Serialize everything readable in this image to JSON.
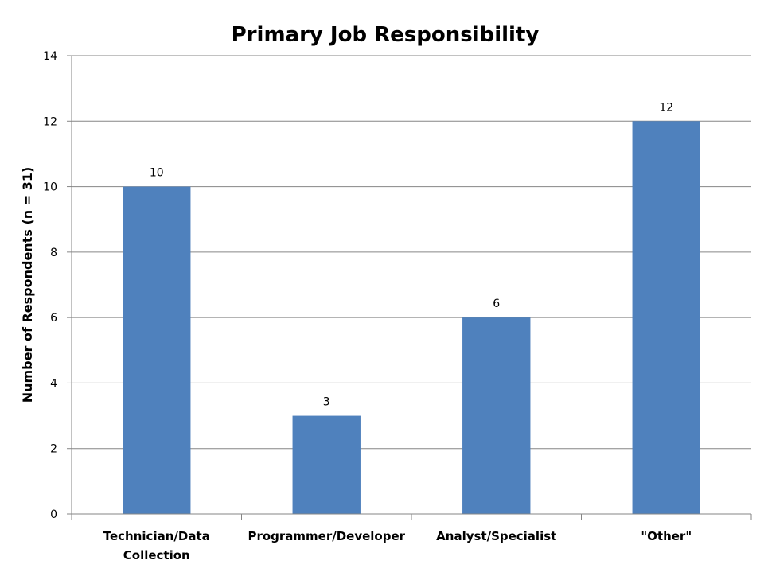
{
  "chart_data": {
    "type": "bar",
    "title": "Primary Job Responsibility",
    "xlabel": "",
    "ylabel": "Number of Respondents (n = 31)",
    "categories": [
      [
        "Technician/Data",
        "Collection"
      ],
      [
        "Programmer/Developer"
      ],
      [
        "Analyst/Specialist"
      ],
      [
        "\"Other\""
      ]
    ],
    "values": [
      10,
      3,
      6,
      12
    ],
    "data_labels": [
      "10",
      "3",
      "6",
      "12"
    ],
    "ylim": [
      0,
      14
    ],
    "yticks": [
      0,
      2,
      4,
      6,
      8,
      10,
      12,
      14
    ],
    "grid": true,
    "legend": "none",
    "bar_color": "#4F81BD",
    "grid_color": "#868686",
    "axis_color": "#868686"
  }
}
